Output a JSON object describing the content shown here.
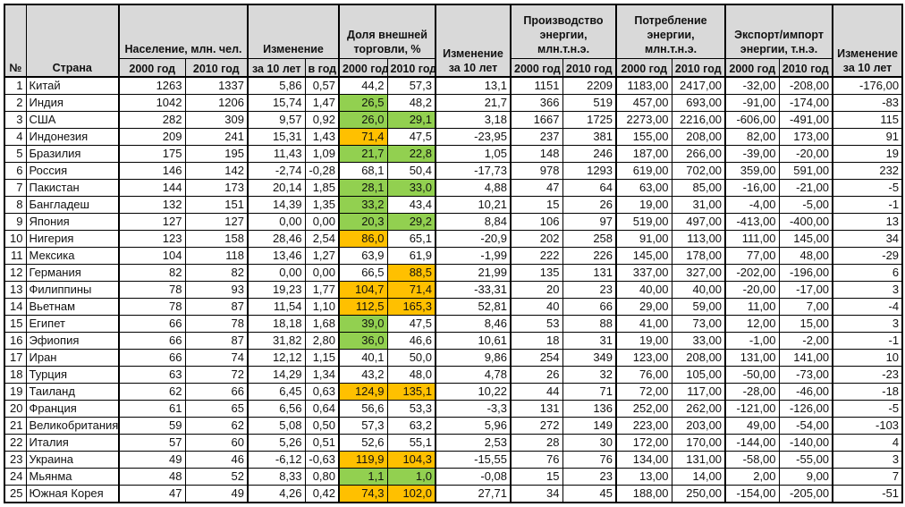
{
  "colors": {
    "green": "#92D050",
    "orange": "#FFC000",
    "header_bg": "#D9D9D9",
    "border": "#000000"
  },
  "columns": {
    "num": "№",
    "country": "Страна",
    "y2000": "2000 год",
    "y2010": "2010 год",
    "per10": "за 10 лет",
    "per_year": "в год"
  },
  "groups": {
    "population": "Население, млн. чел.",
    "change": "Изменение",
    "trade": "Доля внешней торговли, %",
    "trade_change": "Изменение за 10 лет",
    "production": "Производство энергии, млн.т.н.э.",
    "consumption": "Потребление энергии, млн.т.н.э.",
    "export_import": "Экспорт/импорт энергии, т.н.э.",
    "energy_change": "Изменение за 10 лет"
  },
  "value_columns_order": [
    "population_2000",
    "population_2010",
    "change_10y",
    "change_per_year",
    "trade_2000",
    "trade_2010",
    "trade_change_10y",
    "production_2000",
    "production_2010",
    "consumption_2000",
    "consumption_2010",
    "export_import_2000",
    "export_import_2010",
    "energy_change_10y"
  ],
  "rows": [
    {
      "n": "1",
      "country": "Китай",
      "v": [
        "1263",
        "1337",
        "5,86",
        "0,57",
        "44,2",
        "57,3",
        "13,1",
        "1151",
        "2209",
        "1183,00",
        "2417,00",
        "-32,00",
        "-208,00",
        "-176,00"
      ],
      "hl": [
        null,
        null
      ]
    },
    {
      "n": "2",
      "country": "Индия",
      "v": [
        "1042",
        "1206",
        "15,74",
        "1,47",
        "26,5",
        "48,2",
        "21,7",
        "366",
        "519",
        "457,00",
        "693,00",
        "-91,00",
        "-174,00",
        "-83"
      ],
      "hl": [
        "green",
        null
      ]
    },
    {
      "n": "3",
      "country": "США",
      "v": [
        "282",
        "309",
        "9,57",
        "0,92",
        "26,0",
        "29,1",
        "3,18",
        "1667",
        "1725",
        "2273,00",
        "2216,00",
        "-606,00",
        "-491,00",
        "115"
      ],
      "hl": [
        "green",
        "green"
      ]
    },
    {
      "n": "4",
      "country": "Индонезия",
      "v": [
        "209",
        "241",
        "15,31",
        "1,43",
        "71,4",
        "47,5",
        "-23,95",
        "237",
        "381",
        "155,00",
        "208,00",
        "82,00",
        "173,00",
        "91"
      ],
      "hl": [
        "orange",
        null
      ]
    },
    {
      "n": "5",
      "country": "Бразилия",
      "v": [
        "175",
        "195",
        "11,43",
        "1,09",
        "21,7",
        "22,8",
        "1,05",
        "148",
        "246",
        "187,00",
        "266,00",
        "-39,00",
        "-20,00",
        "19"
      ],
      "hl": [
        "green",
        "green"
      ]
    },
    {
      "n": "6",
      "country": "Россия",
      "v": [
        "146",
        "142",
        "-2,74",
        "-0,28",
        "68,1",
        "50,4",
        "-17,73",
        "978",
        "1293",
        "619,00",
        "702,00",
        "359,00",
        "591,00",
        "232"
      ],
      "hl": [
        null,
        null
      ]
    },
    {
      "n": "7",
      "country": "Пакистан",
      "v": [
        "144",
        "173",
        "20,14",
        "1,85",
        "28,1",
        "33,0",
        "4,88",
        "47",
        "64",
        "63,00",
        "85,00",
        "-16,00",
        "-21,00",
        "-5"
      ],
      "hl": [
        "green",
        "green"
      ]
    },
    {
      "n": "8",
      "country": "Бангладеш",
      "v": [
        "132",
        "151",
        "14,39",
        "1,35",
        "33,2",
        "43,4",
        "10,21",
        "15",
        "26",
        "19,00",
        "31,00",
        "-4,00",
        "-5,00",
        "-1"
      ],
      "hl": [
        "green",
        null
      ]
    },
    {
      "n": "9",
      "country": "Япония",
      "v": [
        "127",
        "127",
        "0,00",
        "0,00",
        "20,3",
        "29,2",
        "8,84",
        "106",
        "97",
        "519,00",
        "497,00",
        "-413,00",
        "-400,00",
        "13"
      ],
      "hl": [
        "green",
        "green"
      ]
    },
    {
      "n": "10",
      "country": "Нигерия",
      "v": [
        "123",
        "158",
        "28,46",
        "2,54",
        "86,0",
        "65,1",
        "-20,9",
        "202",
        "258",
        "91,00",
        "113,00",
        "111,00",
        "145,00",
        "34"
      ],
      "hl": [
        "orange",
        null
      ]
    },
    {
      "n": "11",
      "country": "Мексика",
      "v": [
        "104",
        "118",
        "13,46",
        "1,27",
        "63,9",
        "61,9",
        "-1,99",
        "222",
        "226",
        "145,00",
        "178,00",
        "77,00",
        "48,00",
        "-29"
      ],
      "hl": [
        null,
        null
      ]
    },
    {
      "n": "12",
      "country": "Германия",
      "v": [
        "82",
        "82",
        "0,00",
        "0,00",
        "66,5",
        "88,5",
        "21,99",
        "135",
        "131",
        "337,00",
        "327,00",
        "-202,00",
        "-196,00",
        "6"
      ],
      "hl": [
        null,
        "orange"
      ]
    },
    {
      "n": "13",
      "country": "Филиппины",
      "v": [
        "78",
        "93",
        "19,23",
        "1,77",
        "104,7",
        "71,4",
        "-33,31",
        "20",
        "23",
        "40,00",
        "40,00",
        "-20,00",
        "-17,00",
        "3"
      ],
      "hl": [
        "orange",
        "orange"
      ]
    },
    {
      "n": "14",
      "country": "Вьетнам",
      "v": [
        "78",
        "87",
        "11,54",
        "1,10",
        "112,5",
        "165,3",
        "52,81",
        "40",
        "66",
        "29,00",
        "59,00",
        "11,00",
        "7,00",
        "-4"
      ],
      "hl": [
        "orange",
        "orange"
      ]
    },
    {
      "n": "15",
      "country": "Египет",
      "v": [
        "66",
        "78",
        "18,18",
        "1,68",
        "39,0",
        "47,5",
        "8,46",
        "53",
        "88",
        "41,00",
        "73,00",
        "12,00",
        "15,00",
        "3"
      ],
      "hl": [
        "green",
        null
      ]
    },
    {
      "n": "16",
      "country": "Эфиопия",
      "v": [
        "66",
        "87",
        "31,82",
        "2,80",
        "36,0",
        "46,6",
        "10,61",
        "18",
        "31",
        "19,00",
        "33,00",
        "-1,00",
        "-2,00",
        "-1"
      ],
      "hl": [
        "green",
        null
      ]
    },
    {
      "n": "17",
      "country": "Иран",
      "v": [
        "66",
        "74",
        "12,12",
        "1,15",
        "40,1",
        "50,0",
        "9,86",
        "254",
        "349",
        "123,00",
        "208,00",
        "131,00",
        "141,00",
        "10"
      ],
      "hl": [
        null,
        null
      ]
    },
    {
      "n": "18",
      "country": "Турция",
      "v": [
        "63",
        "72",
        "14,29",
        "1,34",
        "43,2",
        "48,0",
        "4,78",
        "26",
        "32",
        "76,00",
        "105,00",
        "-50,00",
        "-73,00",
        "-23"
      ],
      "hl": [
        null,
        null
      ]
    },
    {
      "n": "19",
      "country": "Таиланд",
      "v": [
        "62",
        "66",
        "6,45",
        "0,63",
        "124,9",
        "135,1",
        "10,22",
        "44",
        "71",
        "72,00",
        "117,00",
        "-28,00",
        "-46,00",
        "-18"
      ],
      "hl": [
        "orange",
        "orange"
      ]
    },
    {
      "n": "20",
      "country": "Франция",
      "v": [
        "61",
        "65",
        "6,56",
        "0,64",
        "56,6",
        "53,3",
        "-3,3",
        "131",
        "136",
        "252,00",
        "262,00",
        "-121,00",
        "-126,00",
        "-5"
      ],
      "hl": [
        null,
        null
      ]
    },
    {
      "n": "21",
      "country": "Великобритания",
      "v": [
        "59",
        "62",
        "5,08",
        "0,50",
        "57,3",
        "63,2",
        "5,96",
        "272",
        "149",
        "223,00",
        "203,00",
        "49,00",
        "-54,00",
        "-103"
      ],
      "hl": [
        null,
        null
      ]
    },
    {
      "n": "22",
      "country": "Италия",
      "v": [
        "57",
        "60",
        "5,26",
        "0,51",
        "52,6",
        "55,1",
        "2,53",
        "28",
        "30",
        "172,00",
        "170,00",
        "-144,00",
        "-140,00",
        "4"
      ],
      "hl": [
        null,
        null
      ]
    },
    {
      "n": "23",
      "country": "Украина",
      "v": [
        "49",
        "46",
        "-6,12",
        "-0,63",
        "119,9",
        "104,3",
        "-15,55",
        "76",
        "76",
        "134,00",
        "131,00",
        "-58,00",
        "-55,00",
        "3"
      ],
      "hl": [
        "orange",
        "orange"
      ]
    },
    {
      "n": "24",
      "country": "Мьянма",
      "v": [
        "48",
        "52",
        "8,33",
        "0,80",
        "1,1",
        "1,0",
        "-0,08",
        "15",
        "23",
        "13,00",
        "14,00",
        "2,00",
        "9,00",
        "7"
      ],
      "hl": [
        "green",
        "green"
      ]
    },
    {
      "n": "25",
      "country": "Южная Корея",
      "v": [
        "47",
        "49",
        "4,26",
        "0,42",
        "74,3",
        "102,0",
        "27,71",
        "34",
        "45",
        "188,00",
        "250,00",
        "-154,00",
        "-205,00",
        "-51"
      ],
      "hl": [
        "orange",
        "orange"
      ]
    }
  ]
}
